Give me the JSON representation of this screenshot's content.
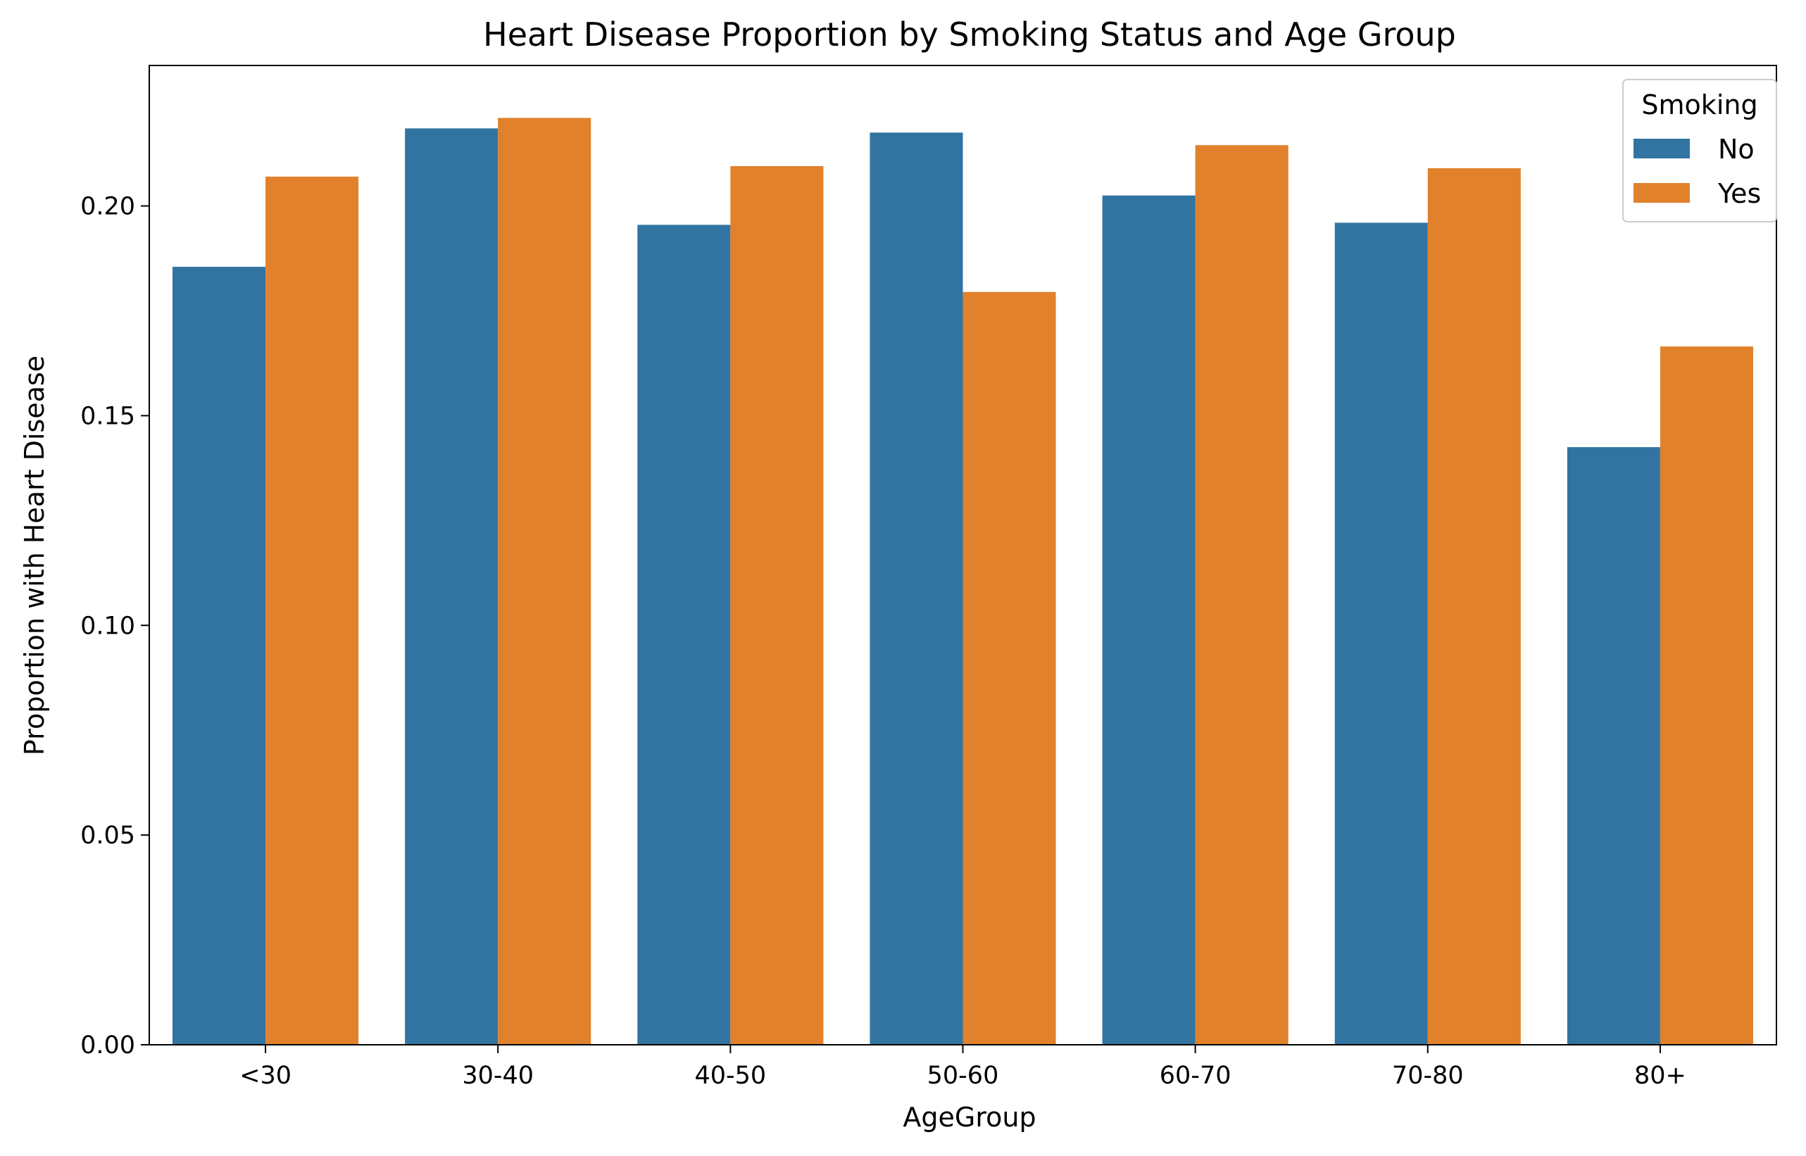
{
  "chart_data": {
    "type": "bar",
    "title": "Heart Disease Proportion by Smoking Status and Age Group",
    "xlabel": "AgeGroup",
    "ylabel": "Proportion with Heart Disease",
    "categories": [
      "<30",
      "30-40",
      "40-50",
      "50-60",
      "60-70",
      "70-80",
      "80+"
    ],
    "series": [
      {
        "name": "No",
        "color": "#3274a1",
        "values": [
          0.1855,
          0.2185,
          0.1955,
          0.2175,
          0.2025,
          0.196,
          0.1425
        ]
      },
      {
        "name": "Yes",
        "color": "#e1812c",
        "values": [
          0.207,
          0.221,
          0.2095,
          0.1795,
          0.2145,
          0.209,
          0.1665
        ]
      }
    ],
    "ylim": [
      0,
      0.2335
    ],
    "yticks": [
      0.0,
      0.05,
      0.1,
      0.15,
      0.2
    ],
    "ytick_labels": [
      "0.00",
      "0.05",
      "0.10",
      "0.15",
      "0.20"
    ],
    "legend": {
      "title": "Smoking",
      "placement": "top-right"
    },
    "grid": false
  }
}
